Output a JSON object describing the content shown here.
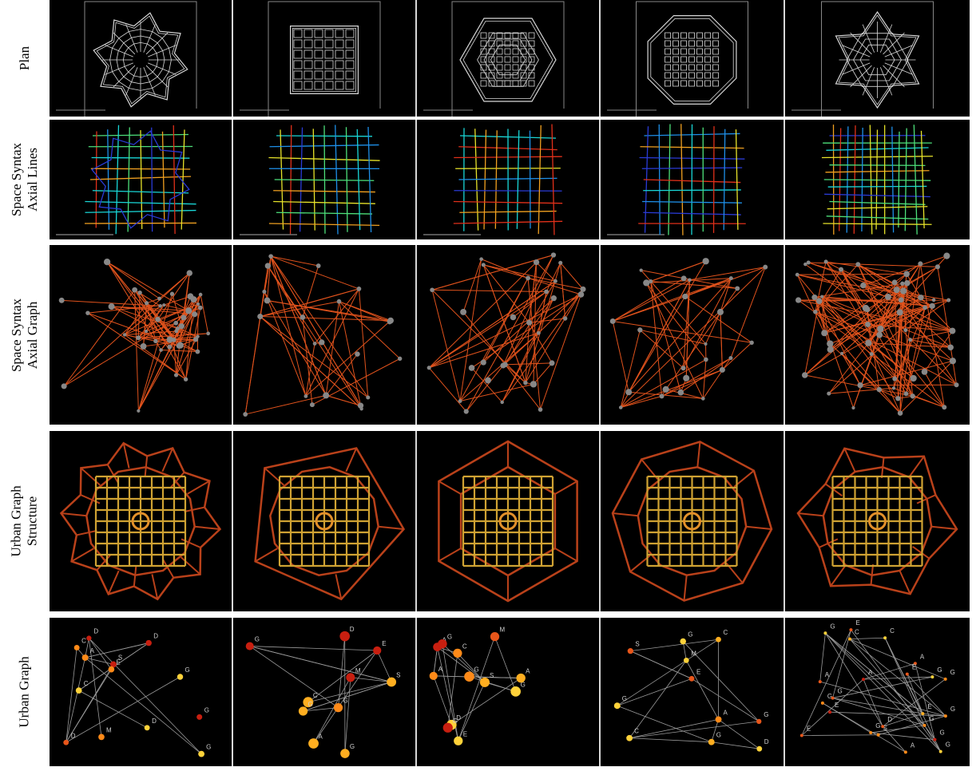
{
  "rows": [
    {
      "label_lines": [
        "Plan"
      ]
    },
    {
      "label_lines": [
        "Space Syntax",
        "Axial Lines"
      ]
    },
    {
      "label_lines": [
        "Space Syntax",
        "Axial Graph"
      ]
    },
    {
      "label_lines": [
        "Urban Graph",
        "Structure"
      ]
    },
    {
      "label_lines": [
        "Urban Graph"
      ]
    }
  ],
  "urban_graph_labels": [
    [
      "D",
      "D",
      "G",
      "D",
      "S",
      "A",
      "E",
      "G",
      "M",
      "C",
      "D",
      "C",
      "G"
    ],
    [
      "G",
      "C",
      "S",
      "G",
      "E",
      "D",
      "A",
      "M",
      "G",
      "G"
    ],
    [
      "A",
      "G",
      "A",
      "C",
      "M",
      "E",
      "G",
      "A",
      "G",
      "D",
      "S",
      "G"
    ],
    [
      "G",
      "S",
      "C",
      "G",
      "D",
      "A",
      "C",
      "E",
      "M",
      "G",
      "G"
    ],
    [
      "E",
      "G",
      "G",
      "A",
      "S",
      "G",
      "E",
      "A",
      "G",
      "G",
      "D",
      "A",
      "G",
      "C",
      "A",
      "G",
      "E",
      "G",
      "G",
      "G",
      "C",
      "E",
      "E"
    ]
  ],
  "colors": {
    "background": "#000000",
    "separator": "#d7d7d7",
    "plan_line": "#d9d9d9",
    "axial_graph_edge": "#e0521c",
    "axial_graph_node": "#888888",
    "structure_outer": "#b9411a",
    "structure_inner": "#cfa233",
    "urban_graph_edge": "#9a9a9a",
    "node_scale": [
      "#ffd23a",
      "#ffae20",
      "#ff8a18",
      "#e8561a",
      "#c81f10"
    ]
  }
}
